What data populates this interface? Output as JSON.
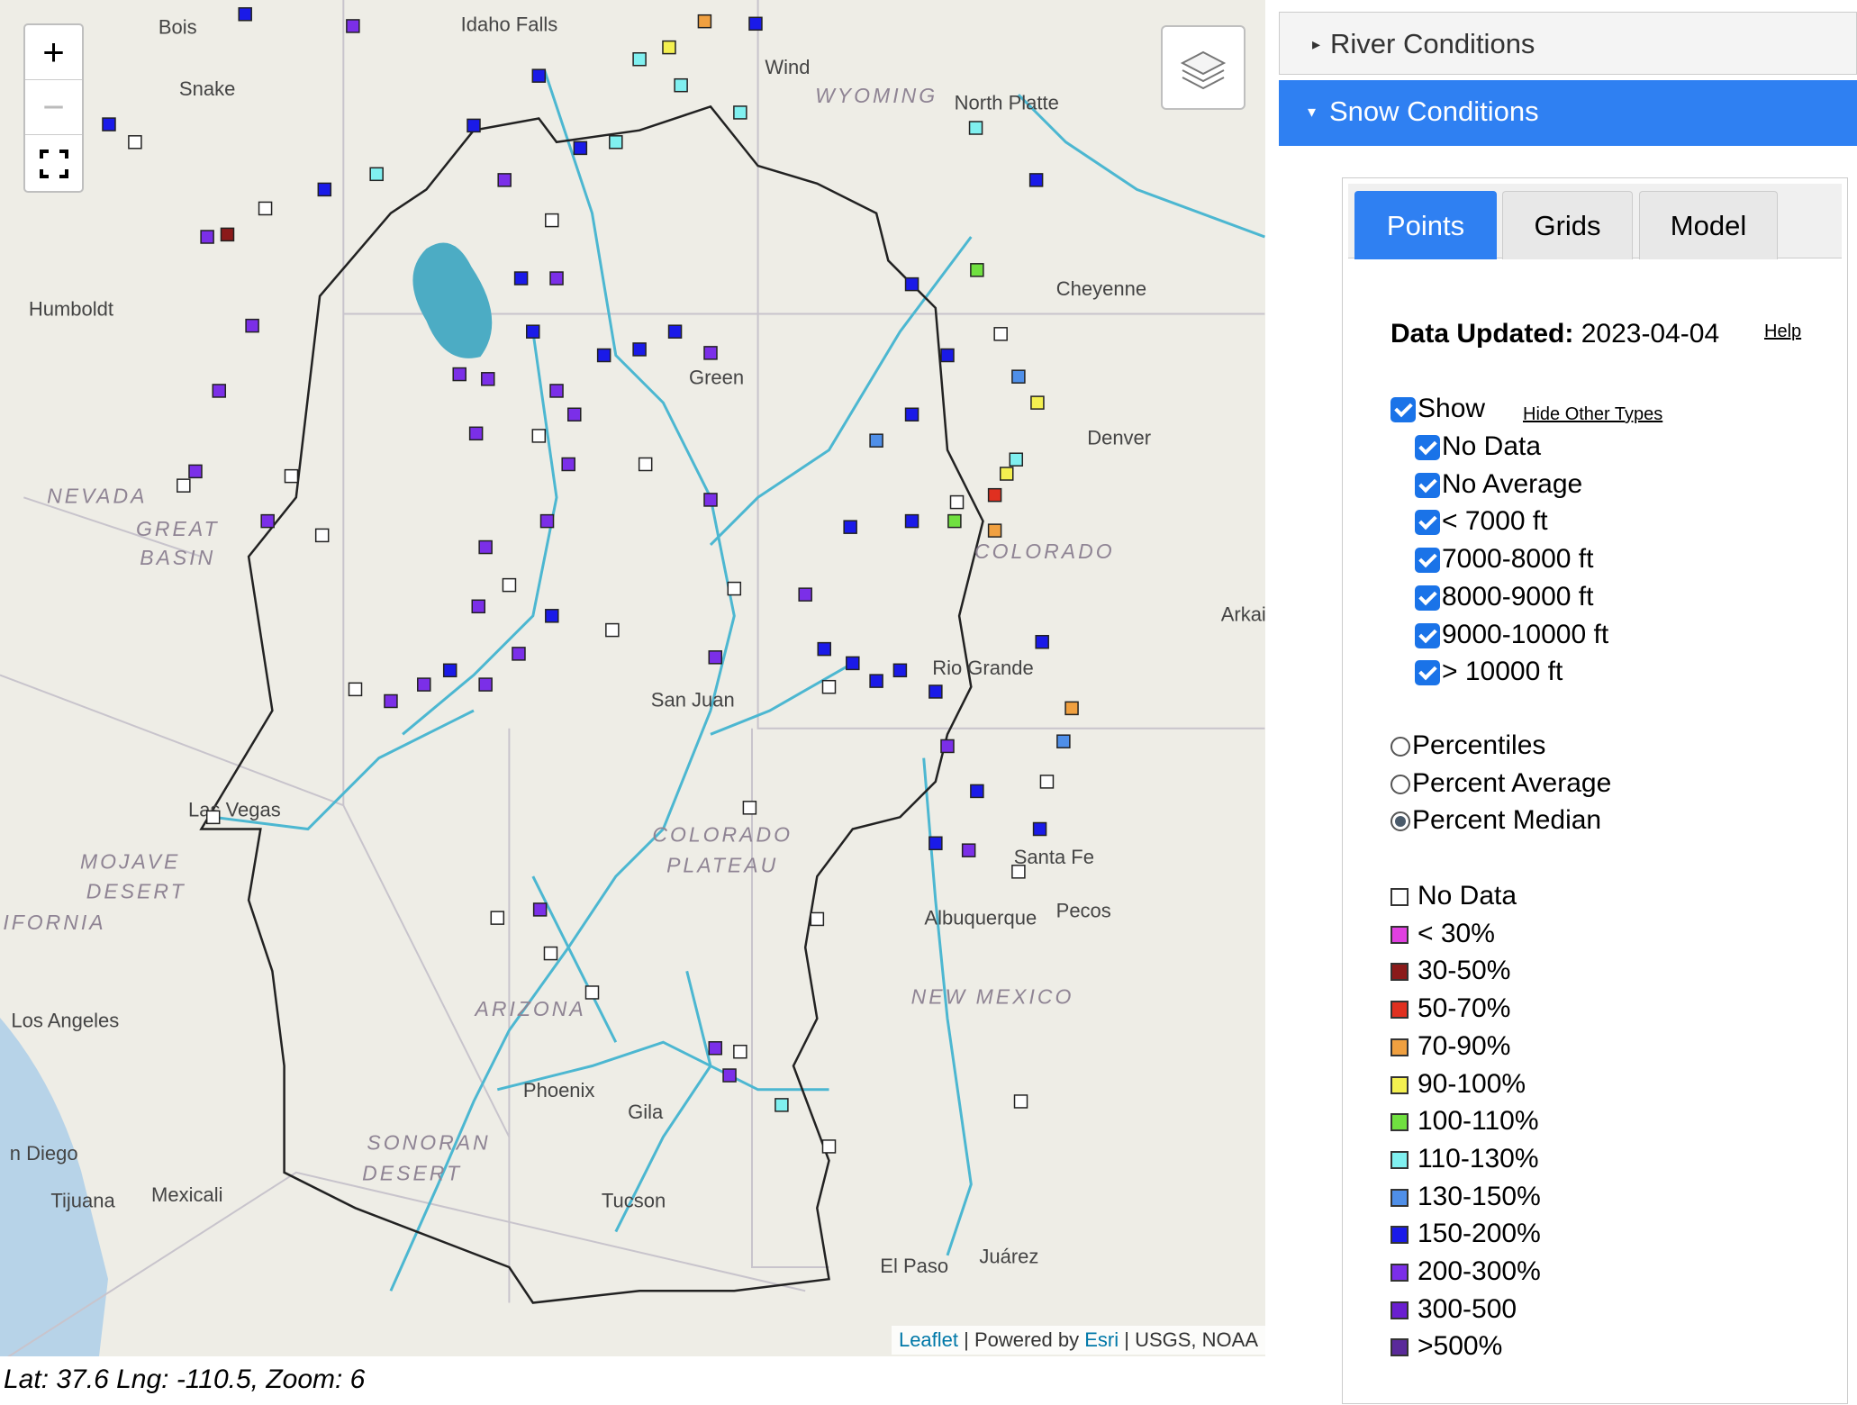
{
  "map": {
    "labels": [
      "Bois",
      "Idaho Falls",
      "WYOMING",
      "North Platte",
      "Snake",
      "Wind",
      "Humboldt",
      "NEVADA",
      "GREAT",
      "BASIN",
      "Cheyenne",
      "Denver",
      "COLORADO",
      "Arkai",
      "Green",
      "San Juan",
      "Rio Grande",
      "Las Vegas",
      "MOJAVE",
      "DESERT",
      "LIFORNIA",
      "COLORADO",
      "PLATEAU",
      "Albuquerque",
      "NEW MEXICO",
      "Santa Fe",
      "Pecos",
      "Los Angeles",
      "ARIZONA",
      "Phoenix",
      "Gila",
      "SONORAN",
      "DESERT",
      "n Diego",
      "Tijuana",
      "Mexicali",
      "Tucson",
      "El Paso",
      "Juárez"
    ],
    "zoom_in": "+",
    "zoom_out": "−",
    "attribution": {
      "leaflet": "Leaflet",
      "powered": " | Powered by ",
      "esri": "Esri",
      "sources": " | USGS, NOAA"
    }
  },
  "status": "Lat: 37.6 Lng: -110.5, Zoom: 6",
  "panel": {
    "sections": [
      "River Conditions",
      "Snow Conditions"
    ],
    "tabs": [
      "Points",
      "Grids",
      "Model"
    ],
    "updated_label": "Data Updated:",
    "updated_value": "2023-04-04",
    "help": "Help",
    "show": "Show",
    "hide_other": "Hide Other Types",
    "filters": [
      "No Data",
      "No Average",
      "< 7000 ft",
      "7000-8000 ft",
      "8000-9000 ft",
      "9000-10000 ft",
      "> 10000 ft"
    ],
    "display_modes": [
      "Percentiles",
      "Percent Average",
      "Percent Median"
    ],
    "legend": [
      {
        "label": "No Data",
        "color": "#ffffff"
      },
      {
        "label": "< 30%",
        "color": "#e040e0"
      },
      {
        "label": "30-50%",
        "color": "#8b1a1a"
      },
      {
        "label": "50-70%",
        "color": "#e03020"
      },
      {
        "label": "70-90%",
        "color": "#f0a040"
      },
      {
        "label": "90-100%",
        "color": "#f4f050"
      },
      {
        "label": "100-110%",
        "color": "#70e040"
      },
      {
        "label": "110-130%",
        "color": "#80f0f0"
      },
      {
        "label": "130-150%",
        "color": "#4f8fe8"
      },
      {
        "label": "150-200%",
        "color": "#1a1ae8"
      },
      {
        "label": "200-300%",
        "color": "#7b2fe8"
      },
      {
        "label": "300-500",
        "color": "#6a1fd0"
      },
      {
        "label": ">500%",
        "color": "#5a2a9a"
      }
    ]
  }
}
